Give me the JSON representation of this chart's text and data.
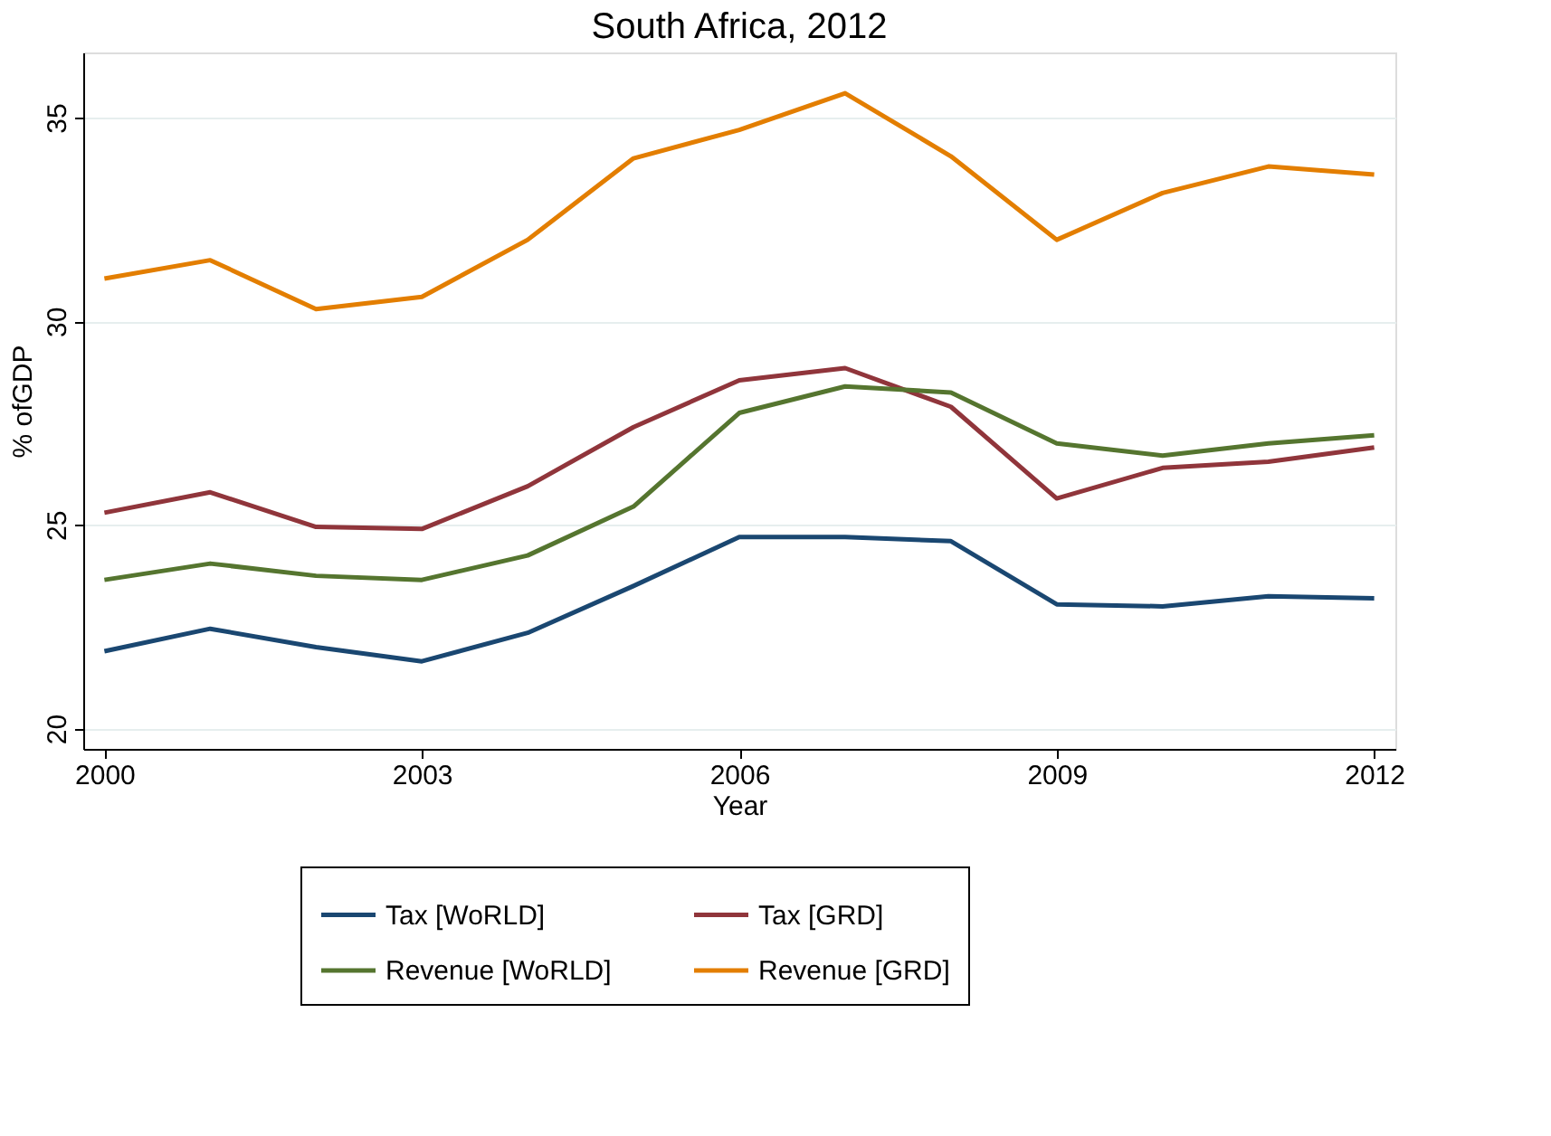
{
  "chart_data": {
    "type": "line",
    "title": "South Africa, 2012",
    "xlabel": "Year",
    "ylabel": "% ofGDP",
    "x": [
      2000,
      2001,
      2002,
      2003,
      2004,
      2005,
      2006,
      2007,
      2008,
      2009,
      2010,
      2011,
      2012
    ],
    "series": [
      {
        "name": "Tax [WoRLD]",
        "color": "#1a4771",
        "values": [
          21.9,
          22.45,
          22.0,
          21.65,
          22.35,
          23.5,
          24.7,
          24.7,
          24.6,
          23.05,
          23.0,
          23.25,
          23.2
        ]
      },
      {
        "name": "Tax [GRD]",
        "color": "#90353b",
        "values": [
          25.3,
          25.8,
          24.95,
          24.9,
          25.95,
          27.4,
          28.55,
          28.85,
          27.9,
          25.65,
          26.4,
          26.55,
          26.9
        ]
      },
      {
        "name": "Revenue [WoRLD]",
        "color": "#55752f",
        "values": [
          23.65,
          24.05,
          23.75,
          23.65,
          24.25,
          25.45,
          27.75,
          28.4,
          28.25,
          27.0,
          26.7,
          27.0,
          27.2
        ]
      },
      {
        "name": "Revenue [GRD]",
        "color": "#e37e00",
        "values": [
          31.05,
          31.5,
          30.3,
          30.6,
          32.0,
          34.0,
          34.7,
          35.6,
          34.05,
          32.0,
          33.15,
          33.8,
          33.6
        ]
      }
    ],
    "xlim": [
      1999.8,
      2012.2
    ],
    "xticks": [
      2000,
      2003,
      2006,
      2009,
      2012
    ],
    "ylim": [
      19.5,
      36.6
    ],
    "yticks": [
      20,
      25,
      30,
      35
    ],
    "grid": "y",
    "legend": "bottom",
    "marker": "none",
    "line_style": "solid"
  }
}
